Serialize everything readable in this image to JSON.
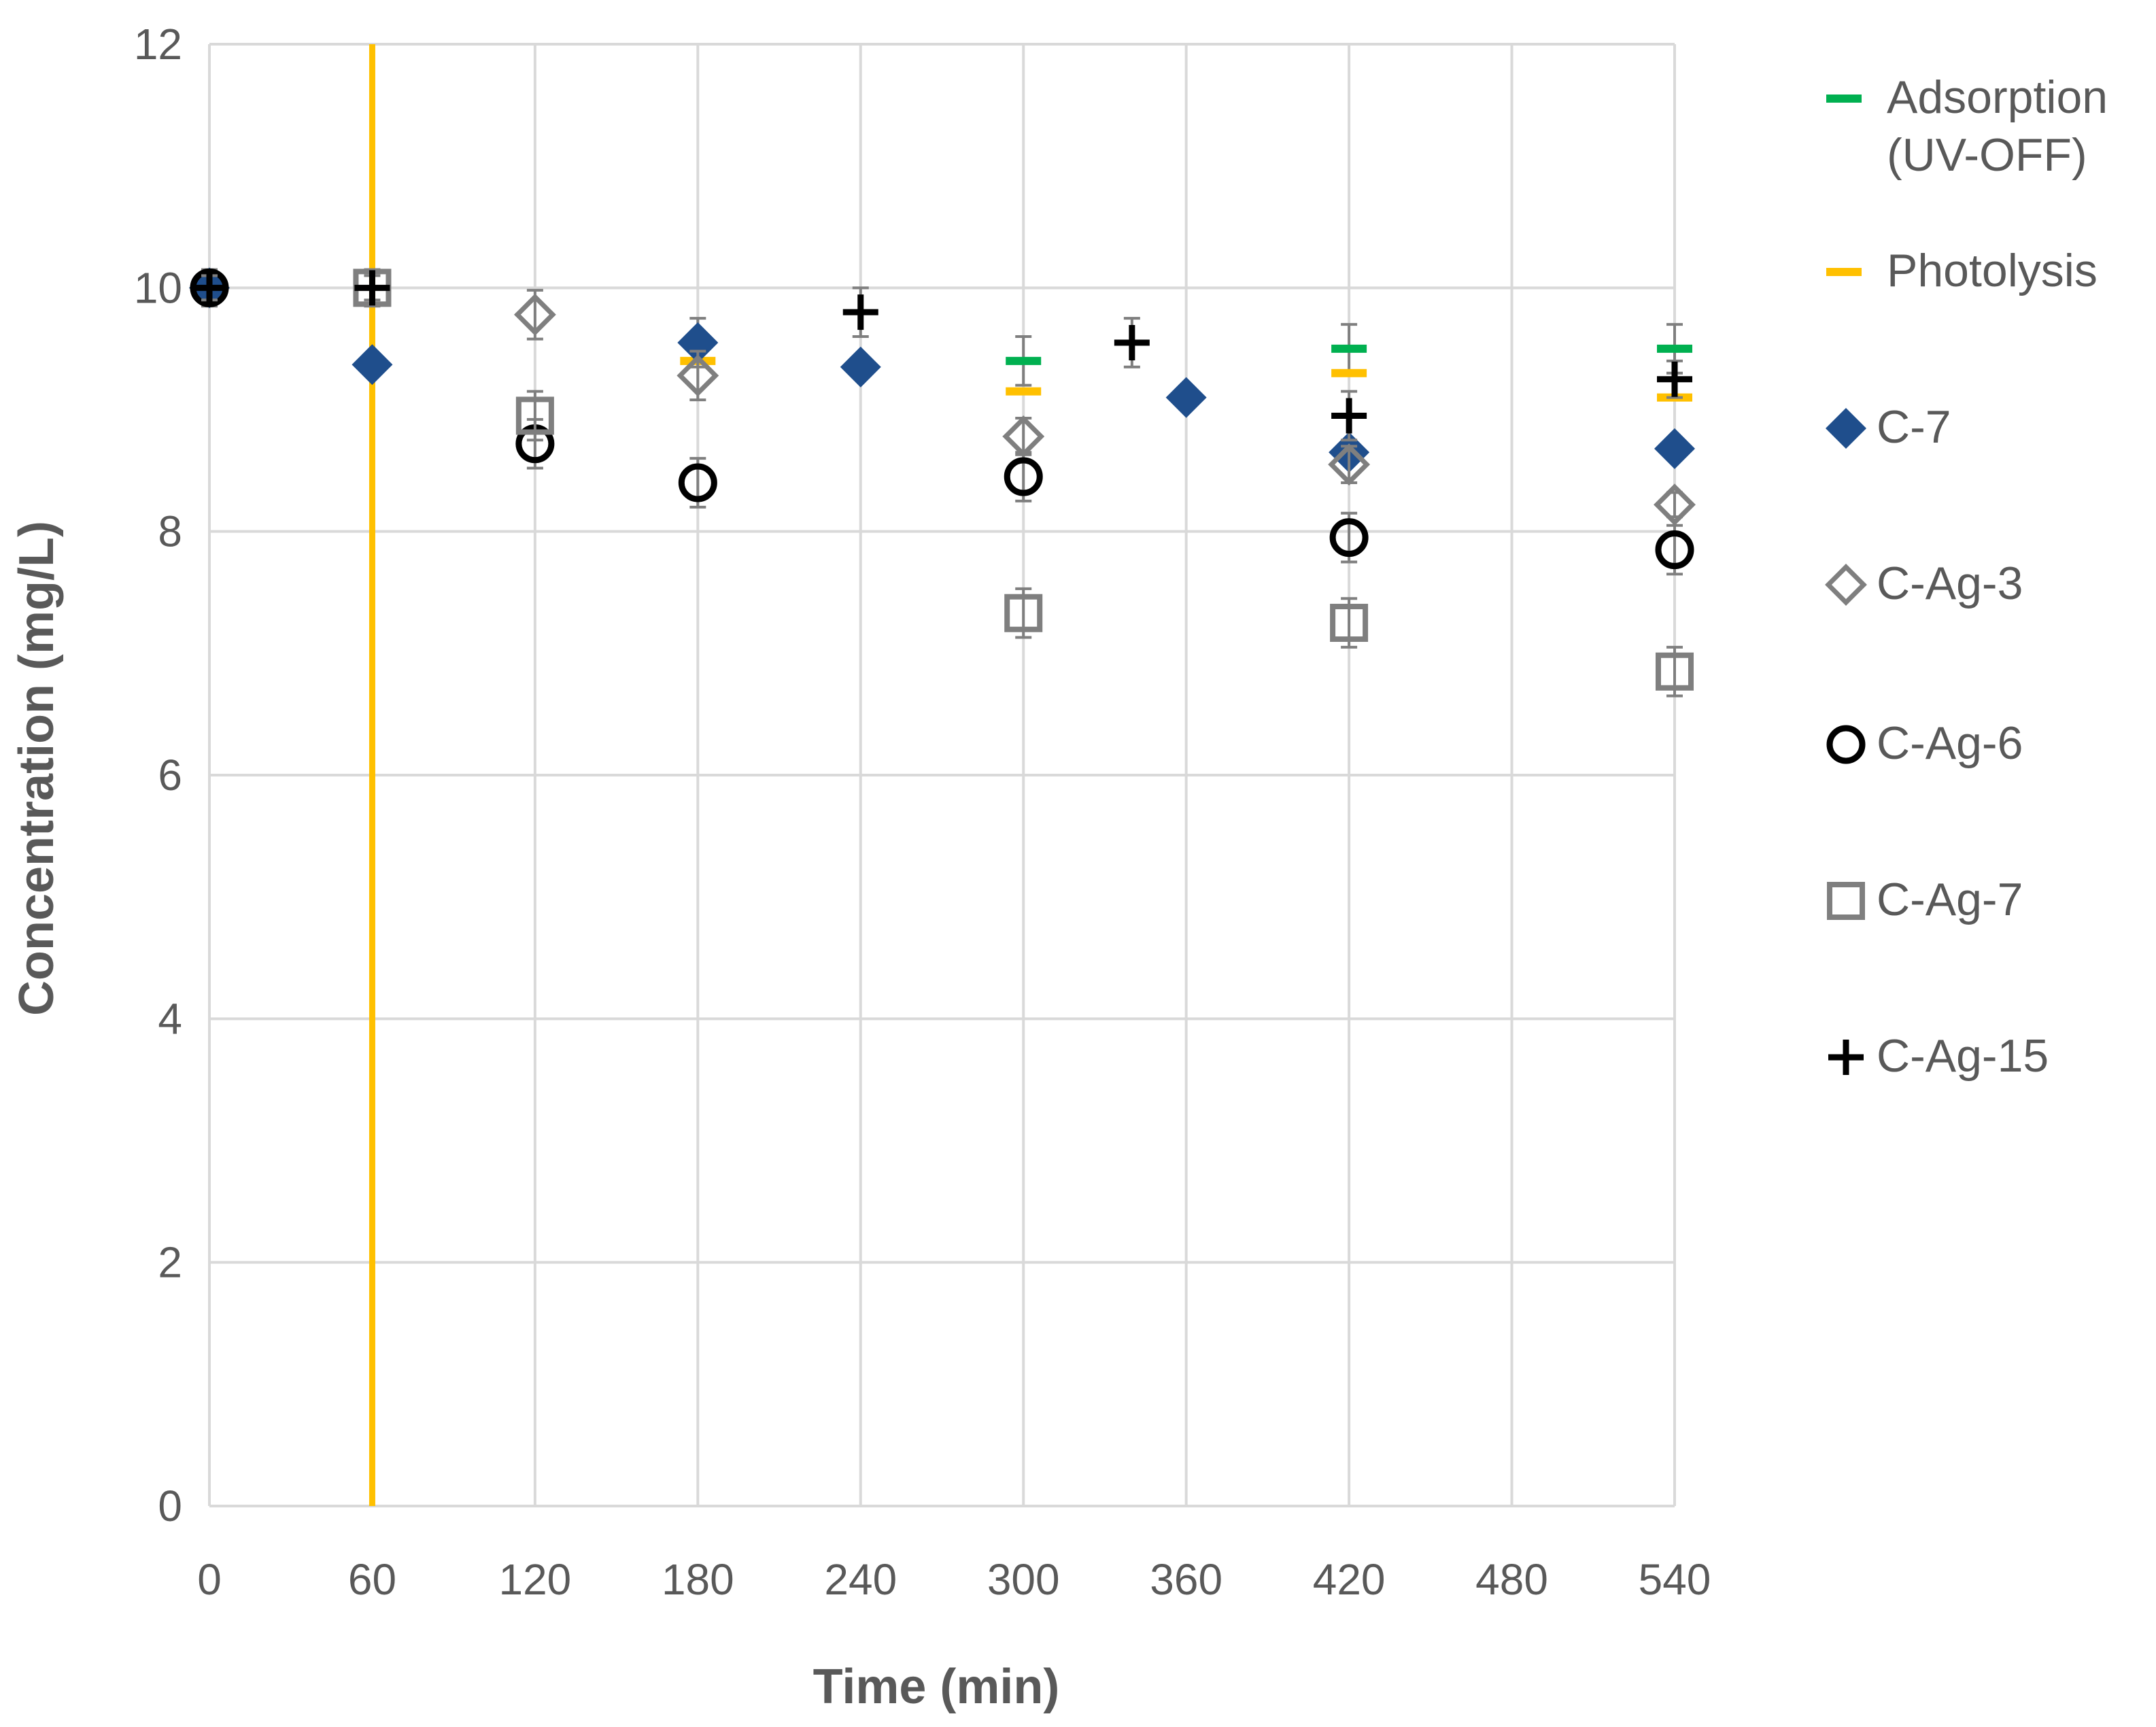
{
  "chart_data": {
    "type": "scatter",
    "title": "",
    "xlabel": "Time (min)",
    "ylabel": "Concentration (mg/L)",
    "xlim": [
      0,
      540
    ],
    "ylim": [
      0,
      12
    ],
    "x_ticks": [
      0,
      60,
      120,
      180,
      240,
      300,
      360,
      420,
      480,
      540
    ],
    "y_ticks": [
      0,
      2,
      4,
      6,
      8,
      10,
      12
    ],
    "grid": true,
    "legend_position": "right",
    "uv_on_time": 60,
    "uv_line_color": "#FFC000",
    "series": [
      {
        "name": "Adsorption (UV-OFF)",
        "label_lines": [
          "Adsorption",
          "(UV-OFF)"
        ],
        "marker": "dash",
        "color": "#00B050",
        "x": [
          300,
          420,
          540
        ],
        "y": [
          9.4,
          9.5,
          9.5
        ],
        "err": [
          0.2,
          0.2,
          0.2
        ]
      },
      {
        "name": "Photolysis",
        "label_lines": [
          "Photolysis"
        ],
        "marker": "dash",
        "color": "#FFC000",
        "x": [
          180,
          300,
          420,
          540
        ],
        "y": [
          9.4,
          9.15,
          9.3,
          9.1
        ],
        "err": [
          0,
          0,
          0,
          0
        ]
      },
      {
        "name": "C-7",
        "label_lines": [
          "C-7"
        ],
        "marker": "diamond",
        "color": "#1F4E8C",
        "x": [
          0,
          60,
          180,
          240,
          360,
          420,
          540
        ],
        "y": [
          10,
          9.37,
          9.55,
          9.35,
          9.1,
          8.65,
          8.68
        ],
        "err": [
          0.15,
          0,
          0.2,
          0,
          0,
          0,
          0
        ]
      },
      {
        "name": "C-Ag-3",
        "label_lines": [
          "C-Ag-3"
        ],
        "marker": "diamond-open",
        "color": "#7F7F7F",
        "x": [
          120,
          180,
          300,
          420,
          540
        ],
        "y": [
          9.78,
          9.28,
          8.78,
          8.55,
          8.22
        ],
        "err": [
          0.2,
          0.2,
          0.15,
          0.15,
          0.1
        ]
      },
      {
        "name": "C-Ag-6",
        "label_lines": [
          "C-Ag-6"
        ],
        "marker": "circle-open",
        "color": "#000000",
        "x": [
          0,
          120,
          180,
          300,
          420,
          540
        ],
        "y": [
          10,
          8.72,
          8.4,
          8.45,
          7.95,
          7.85
        ],
        "err": [
          0.1,
          0.2,
          0.2,
          0.2,
          0.2,
          0.2
        ]
      },
      {
        "name": "C-Ag-7",
        "label_lines": [
          "C-Ag-7"
        ],
        "marker": "square-open",
        "color": "#7F7F7F",
        "x": [
          60,
          120,
          300,
          420,
          540
        ],
        "y": [
          10,
          8.95,
          7.33,
          7.25,
          6.85
        ],
        "err": [
          0.15,
          0.2,
          0.2,
          0.2,
          0.2
        ]
      },
      {
        "name": "C-Ag-15",
        "label_lines": [
          "C-Ag-15"
        ],
        "marker": "plus",
        "color": "#000000",
        "x": [
          0,
          60,
          240,
          340,
          420,
          540
        ],
        "y": [
          10,
          10,
          9.8,
          9.55,
          8.95,
          9.25
        ],
        "err": [
          0.1,
          0.1,
          0.2,
          0.2,
          0.2,
          0.15
        ]
      }
    ]
  }
}
